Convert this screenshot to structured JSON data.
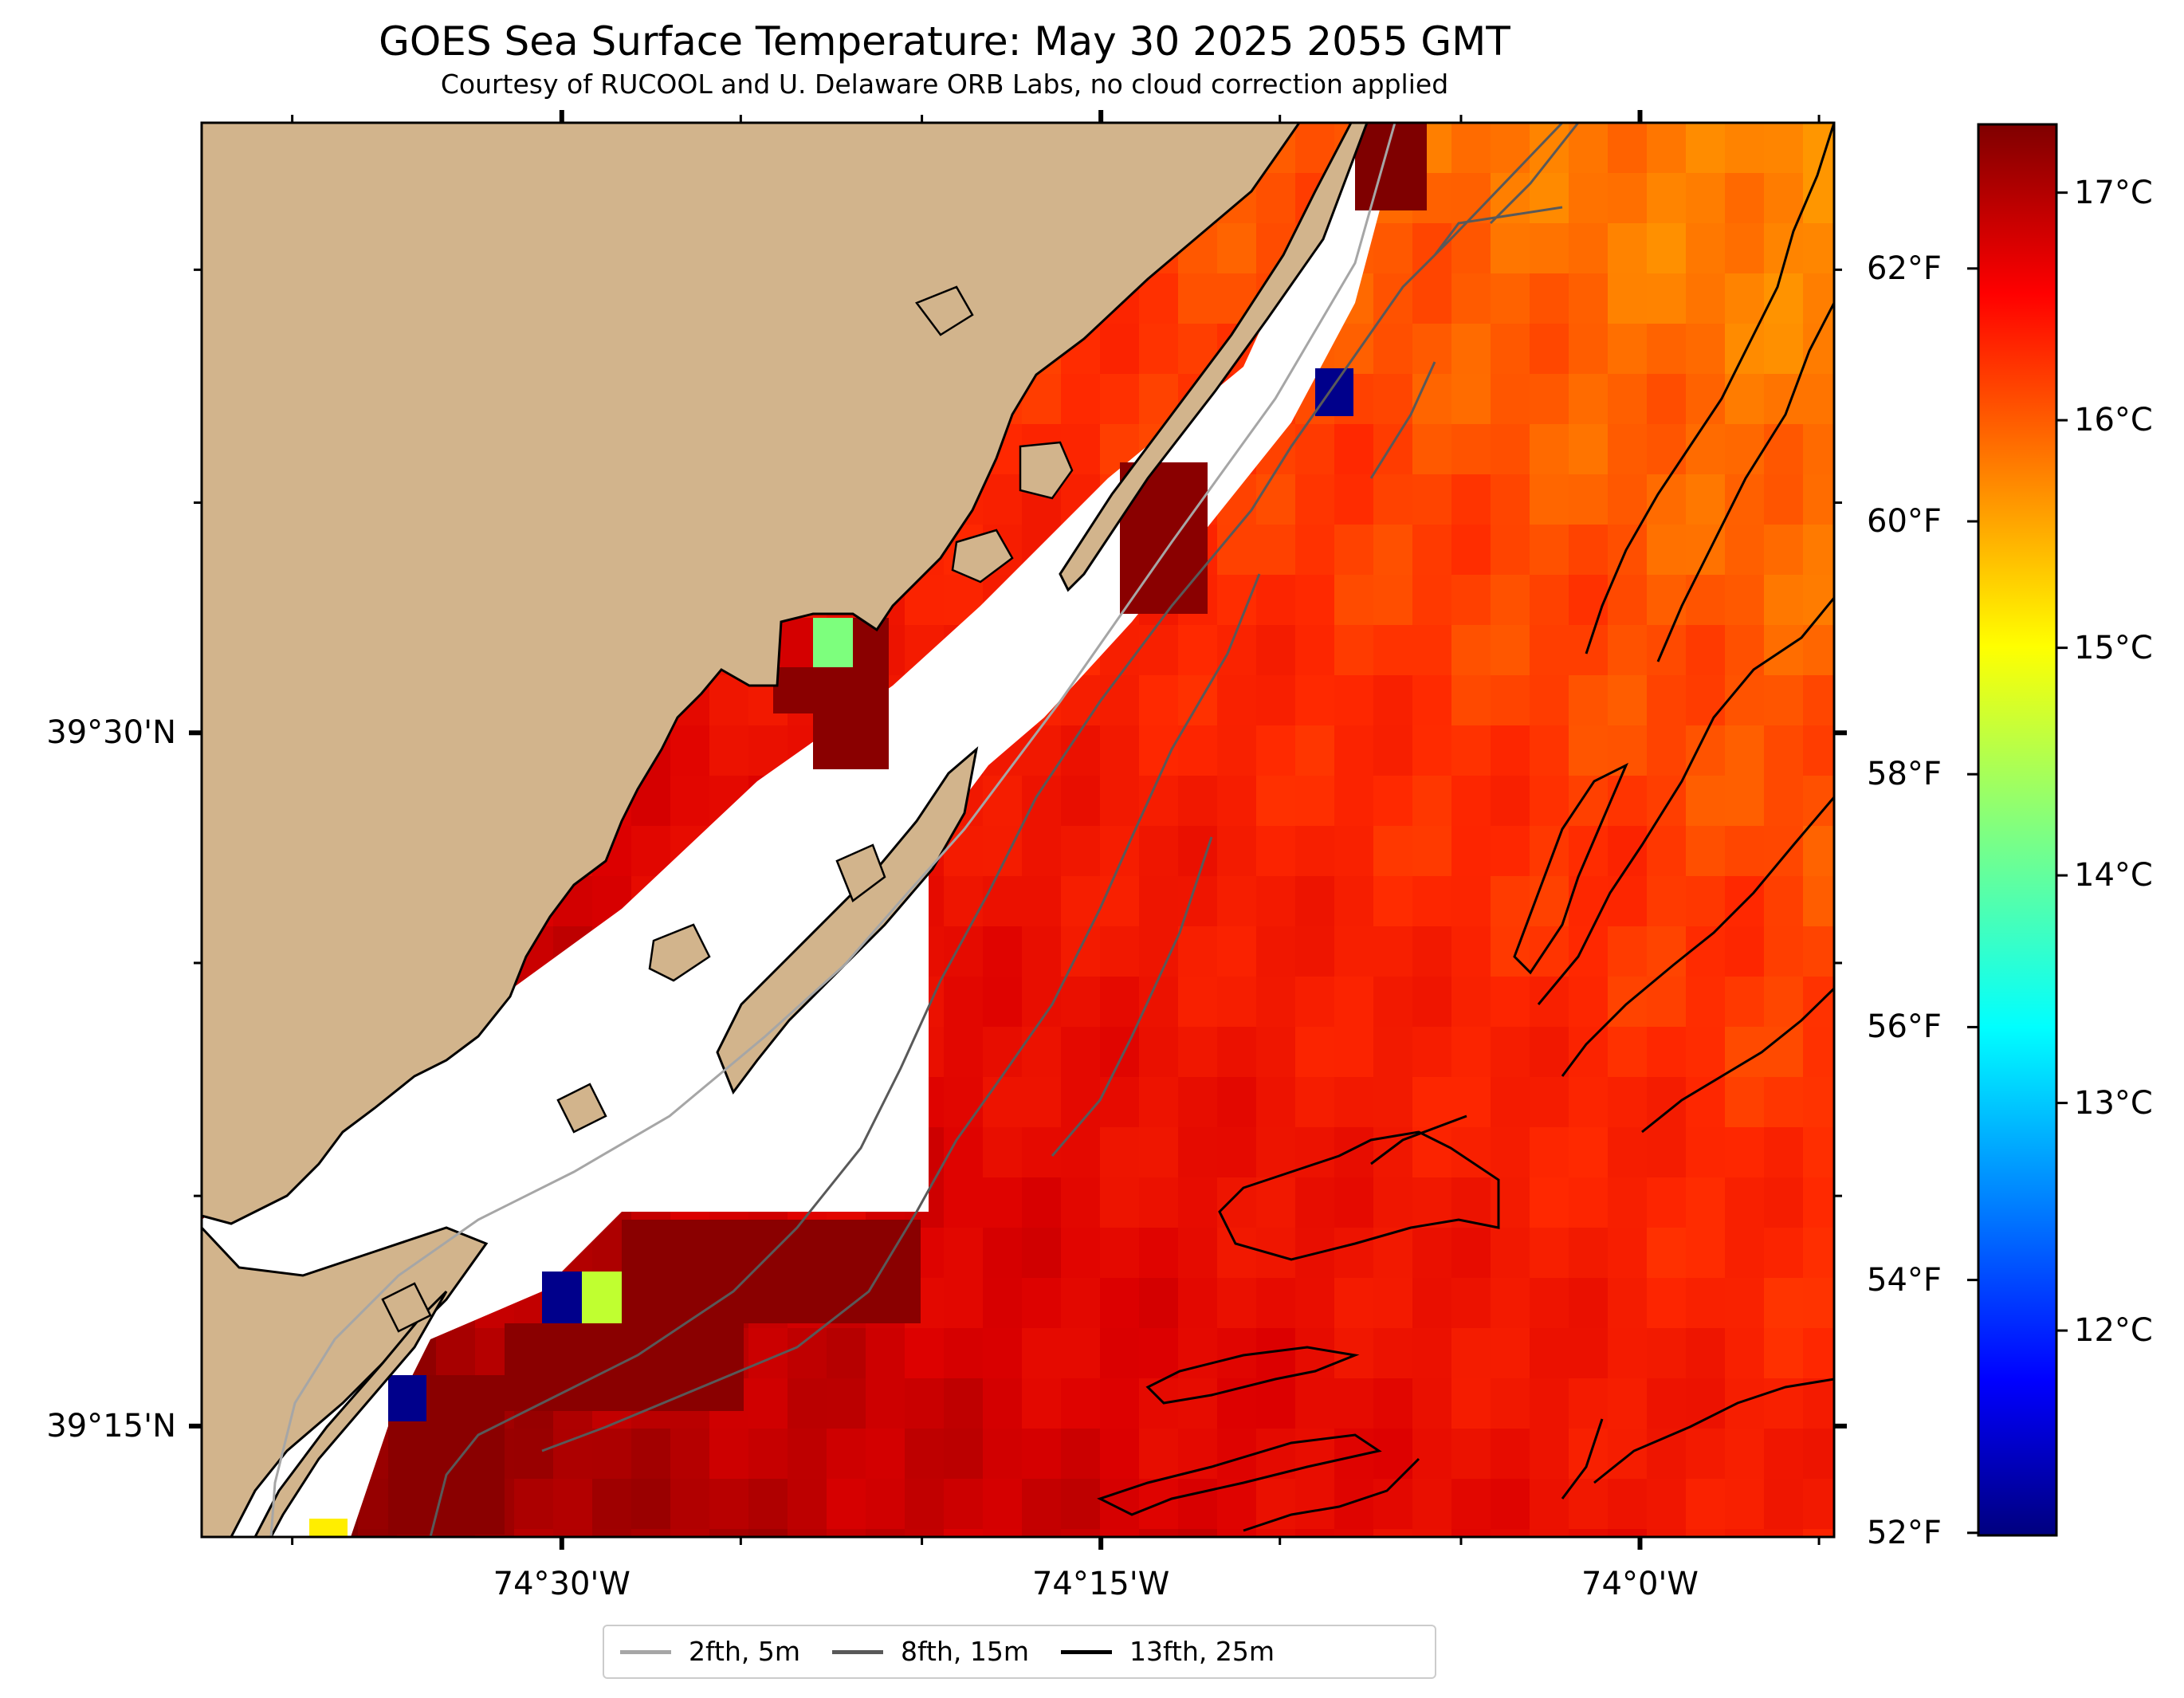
{
  "header": {
    "title": "GOES Sea Surface Temperature: May 30 2025 2055 GMT",
    "subtitle": "Courtesy of RUCOOL and U. Delaware ORB Labs, no cloud correction applied"
  },
  "map": {
    "x_ticks": [
      {
        "label": "74°30'W",
        "lon": -74.5
      },
      {
        "label": "74°15'W",
        "lon": -74.25
      },
      {
        "label": "74°0'W",
        "lon": -74.0
      }
    ],
    "y_ticks": [
      {
        "label": "39°30'N",
        "lat": 39.5
      },
      {
        "label": "39°15'N",
        "lat": 39.25
      }
    ],
    "extent": {
      "lon_min": -74.667,
      "lon_max": -73.91,
      "lat_min": 39.21,
      "lat_max": 39.72
    },
    "colors": {
      "land": "#d2b48c",
      "bay_water": "#ffffff",
      "coastline": "#000000"
    }
  },
  "colorbar": {
    "celsius_labels": [
      "17°C",
      "16°C",
      "15°C",
      "14°C",
      "13°C",
      "12°C"
    ],
    "fahrenheit_labels": [
      "62°F",
      "60°F",
      "58°F",
      "56°F",
      "54°F",
      "52°F"
    ],
    "range_c": [
      11.1,
      17.3
    ],
    "colormap": "jet"
  },
  "legend": {
    "items": [
      {
        "label": "2fth, 5m",
        "color": "#a6a6a6"
      },
      {
        "label": "8fth, 15m",
        "color": "#595959"
      },
      {
        "label": "13fth, 25m",
        "color": "#000000"
      }
    ]
  }
}
